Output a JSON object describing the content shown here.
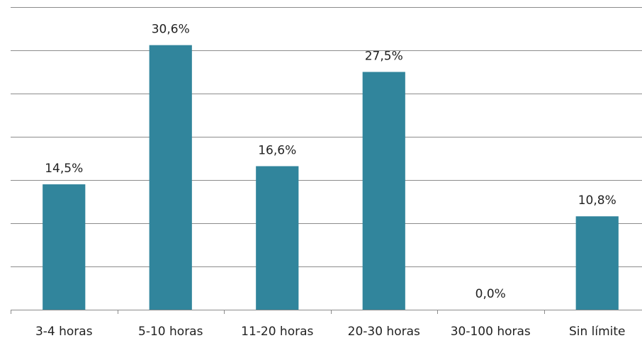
{
  "chart_data": {
    "type": "bar",
    "categories": [
      "3-4 horas",
      "5-10 horas",
      "11-20 horas",
      "20-30 horas",
      "30-100 horas",
      "Sin límite"
    ],
    "values": [
      14.5,
      30.6,
      16.6,
      27.5,
      0.0,
      10.8
    ],
    "value_labels": [
      "14,5%",
      "30,6%",
      "16,6%",
      "27,5%",
      "0,0%",
      "10,8%"
    ],
    "color": "#31859c",
    "ylim": [
      0,
      35
    ],
    "yticks": [
      0,
      5,
      10,
      15,
      20,
      25,
      30,
      35
    ],
    "grid": true
  }
}
